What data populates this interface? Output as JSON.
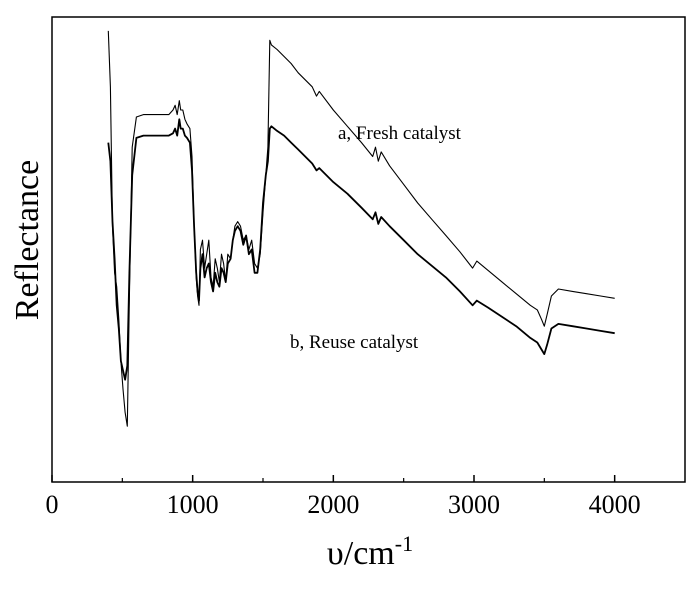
{
  "chart_data": {
    "type": "line",
    "title": "",
    "xlabel": "υ/cm",
    "xlabel_superscript": "-1",
    "ylabel": "Reflectance",
    "xlim": [
      0,
      4500
    ],
    "ylim": [
      0,
      1
    ],
    "xticks": [
      0,
      1000,
      2000,
      3000,
      4000
    ],
    "xtick_labels": [
      "0",
      "1000",
      "2000",
      "3000",
      "4000"
    ],
    "yticks_shown": false,
    "grid": false,
    "legend": "none",
    "series": [
      {
        "name": "a, Fresh catalyst",
        "color": "#000000",
        "points": [
          [
            400,
            0.97
          ],
          [
            415,
            0.85
          ],
          [
            430,
            0.55
          ],
          [
            445,
            0.45
          ],
          [
            460,
            0.42
          ],
          [
            475,
            0.35
          ],
          [
            490,
            0.26
          ],
          [
            505,
            0.2
          ],
          [
            520,
            0.15
          ],
          [
            535,
            0.12
          ],
          [
            550,
            0.4
          ],
          [
            570,
            0.72
          ],
          [
            600,
            0.785
          ],
          [
            650,
            0.79
          ],
          [
            700,
            0.79
          ],
          [
            750,
            0.79
          ],
          [
            800,
            0.79
          ],
          [
            830,
            0.79
          ],
          [
            860,
            0.8
          ],
          [
            875,
            0.81
          ],
          [
            890,
            0.79
          ],
          [
            905,
            0.82
          ],
          [
            915,
            0.8
          ],
          [
            930,
            0.8
          ],
          [
            945,
            0.78
          ],
          [
            960,
            0.77
          ],
          [
            980,
            0.76
          ],
          [
            995,
            0.7
          ],
          [
            1010,
            0.55
          ],
          [
            1025,
            0.44
          ],
          [
            1035,
            0.4
          ],
          [
            1045,
            0.38
          ],
          [
            1055,
            0.5
          ],
          [
            1070,
            0.52
          ],
          [
            1085,
            0.46
          ],
          [
            1100,
            0.49
          ],
          [
            1115,
            0.52
          ],
          [
            1130,
            0.44
          ],
          [
            1145,
            0.42
          ],
          [
            1160,
            0.48
          ],
          [
            1175,
            0.46
          ],
          [
            1190,
            0.43
          ],
          [
            1205,
            0.49
          ],
          [
            1220,
            0.47
          ],
          [
            1235,
            0.43
          ],
          [
            1250,
            0.49
          ],
          [
            1270,
            0.48
          ],
          [
            1285,
            0.52
          ],
          [
            1300,
            0.55
          ],
          [
            1320,
            0.56
          ],
          [
            1340,
            0.55
          ],
          [
            1360,
            0.52
          ],
          [
            1380,
            0.53
          ],
          [
            1400,
            0.5
          ],
          [
            1420,
            0.52
          ],
          [
            1440,
            0.47
          ],
          [
            1460,
            0.46
          ],
          [
            1480,
            0.49
          ],
          [
            1500,
            0.58
          ],
          [
            1520,
            0.66
          ],
          [
            1535,
            0.72
          ],
          [
            1548,
            0.95
          ],
          [
            1560,
            0.94
          ],
          [
            1600,
            0.93
          ],
          [
            1650,
            0.915
          ],
          [
            1700,
            0.9
          ],
          [
            1750,
            0.88
          ],
          [
            1800,
            0.865
          ],
          [
            1850,
            0.85
          ],
          [
            1880,
            0.83
          ],
          [
            1900,
            0.84
          ],
          [
            2000,
            0.8
          ],
          [
            2100,
            0.765
          ],
          [
            2200,
            0.73
          ],
          [
            2280,
            0.7
          ],
          [
            2300,
            0.72
          ],
          [
            2320,
            0.69
          ],
          [
            2340,
            0.71
          ],
          [
            2400,
            0.68
          ],
          [
            2500,
            0.64
          ],
          [
            2600,
            0.6
          ],
          [
            2700,
            0.565
          ],
          [
            2800,
            0.53
          ],
          [
            2900,
            0.495
          ],
          [
            2990,
            0.46
          ],
          [
            3020,
            0.475
          ],
          [
            3100,
            0.455
          ],
          [
            3200,
            0.43
          ],
          [
            3300,
            0.405
          ],
          [
            3400,
            0.38
          ],
          [
            3450,
            0.37
          ],
          [
            3480,
            0.35
          ],
          [
            3500,
            0.335
          ],
          [
            3520,
            0.36
          ],
          [
            3550,
            0.4
          ],
          [
            3600,
            0.415
          ],
          [
            3700,
            0.41
          ],
          [
            3800,
            0.405
          ],
          [
            3900,
            0.4
          ],
          [
            4000,
            0.395
          ]
        ]
      },
      {
        "name": "b, Reuse catalyst",
        "color": "#000000",
        "points": [
          [
            400,
            0.73
          ],
          [
            415,
            0.69
          ],
          [
            430,
            0.56
          ],
          [
            445,
            0.48
          ],
          [
            460,
            0.38
          ],
          [
            475,
            0.33
          ],
          [
            490,
            0.26
          ],
          [
            505,
            0.24
          ],
          [
            520,
            0.22
          ],
          [
            535,
            0.25
          ],
          [
            550,
            0.45
          ],
          [
            570,
            0.66
          ],
          [
            600,
            0.74
          ],
          [
            650,
            0.745
          ],
          [
            700,
            0.745
          ],
          [
            750,
            0.745
          ],
          [
            800,
            0.745
          ],
          [
            830,
            0.745
          ],
          [
            860,
            0.75
          ],
          [
            875,
            0.76
          ],
          [
            890,
            0.745
          ],
          [
            905,
            0.78
          ],
          [
            915,
            0.76
          ],
          [
            930,
            0.76
          ],
          [
            945,
            0.745
          ],
          [
            960,
            0.74
          ],
          [
            980,
            0.73
          ],
          [
            995,
            0.67
          ],
          [
            1010,
            0.55
          ],
          [
            1025,
            0.45
          ],
          [
            1035,
            0.41
          ],
          [
            1045,
            0.39
          ],
          [
            1055,
            0.46
          ],
          [
            1070,
            0.49
          ],
          [
            1085,
            0.44
          ],
          [
            1100,
            0.46
          ],
          [
            1115,
            0.47
          ],
          [
            1130,
            0.43
          ],
          [
            1145,
            0.41
          ],
          [
            1160,
            0.45
          ],
          [
            1175,
            0.43
          ],
          [
            1190,
            0.42
          ],
          [
            1205,
            0.46
          ],
          [
            1220,
            0.45
          ],
          [
            1235,
            0.43
          ],
          [
            1250,
            0.47
          ],
          [
            1270,
            0.48
          ],
          [
            1285,
            0.52
          ],
          [
            1300,
            0.54
          ],
          [
            1320,
            0.55
          ],
          [
            1340,
            0.54
          ],
          [
            1360,
            0.51
          ],
          [
            1380,
            0.53
          ],
          [
            1400,
            0.49
          ],
          [
            1420,
            0.5
          ],
          [
            1440,
            0.45
          ],
          [
            1460,
            0.45
          ],
          [
            1480,
            0.5
          ],
          [
            1500,
            0.6
          ],
          [
            1520,
            0.66
          ],
          [
            1535,
            0.69
          ],
          [
            1548,
            0.76
          ],
          [
            1560,
            0.765
          ],
          [
            1600,
            0.755
          ],
          [
            1650,
            0.745
          ],
          [
            1700,
            0.73
          ],
          [
            1750,
            0.715
          ],
          [
            1800,
            0.7
          ],
          [
            1850,
            0.685
          ],
          [
            1880,
            0.67
          ],
          [
            1900,
            0.675
          ],
          [
            2000,
            0.645
          ],
          [
            2100,
            0.62
          ],
          [
            2200,
            0.59
          ],
          [
            2280,
            0.565
          ],
          [
            2300,
            0.58
          ],
          [
            2320,
            0.555
          ],
          [
            2340,
            0.57
          ],
          [
            2400,
            0.55
          ],
          [
            2500,
            0.52
          ],
          [
            2600,
            0.49
          ],
          [
            2700,
            0.465
          ],
          [
            2800,
            0.44
          ],
          [
            2900,
            0.41
          ],
          [
            2990,
            0.38
          ],
          [
            3020,
            0.39
          ],
          [
            3100,
            0.375
          ],
          [
            3200,
            0.355
          ],
          [
            3300,
            0.335
          ],
          [
            3400,
            0.31
          ],
          [
            3450,
            0.3
          ],
          [
            3480,
            0.285
          ],
          [
            3500,
            0.275
          ],
          [
            3520,
            0.295
          ],
          [
            3550,
            0.33
          ],
          [
            3600,
            0.34
          ],
          [
            3700,
            0.335
          ],
          [
            3800,
            0.33
          ],
          [
            3900,
            0.325
          ],
          [
            4000,
            0.32
          ]
        ]
      }
    ]
  }
}
